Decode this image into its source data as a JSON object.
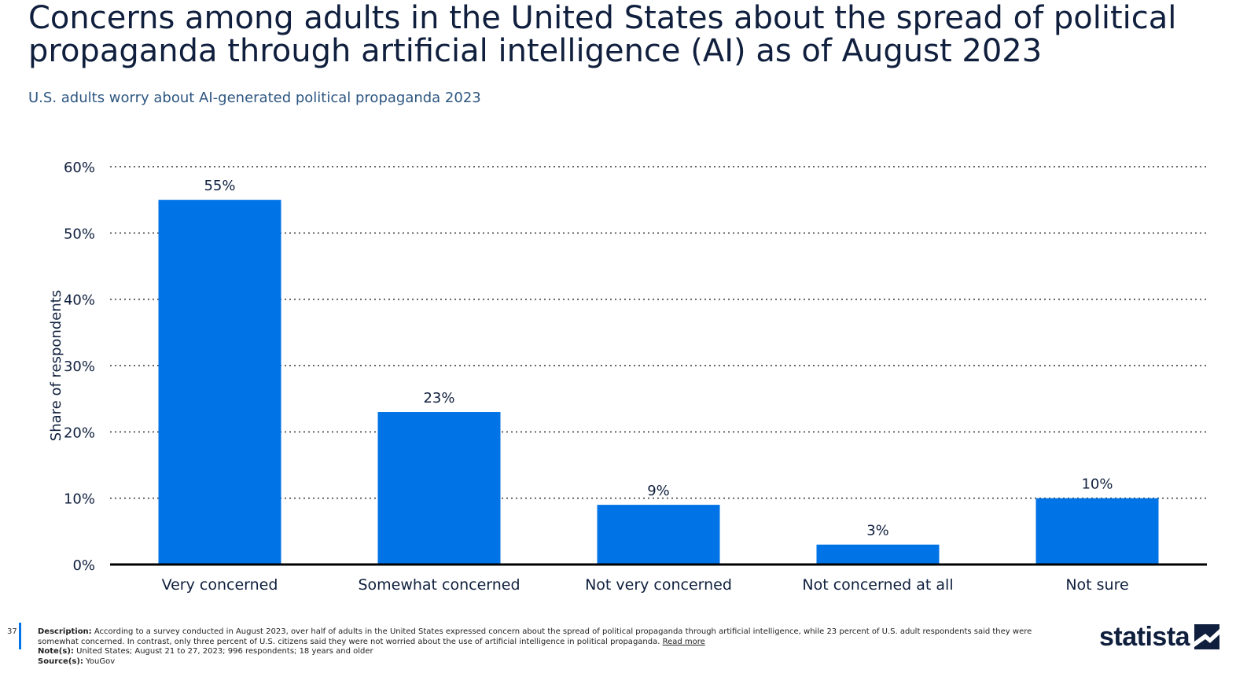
{
  "header": {
    "title": "Concerns among adults in the United States about the spread of political propaganda through artificial intelligence (AI) as of August 2023",
    "subtitle": "U.S. adults worry about AI-generated political propaganda 2023"
  },
  "chart_data": {
    "type": "bar",
    "categories": [
      "Very concerned",
      "Somewhat concerned",
      "Not very concerned",
      "Not concerned at all",
      "Not sure"
    ],
    "values": [
      55,
      23,
      9,
      3,
      10
    ],
    "value_labels": [
      "55%",
      "23%",
      "9%",
      "3%",
      "10%"
    ],
    "ylabel": "Share of respondents",
    "ylim": [
      0,
      60
    ],
    "yticks": [
      0,
      10,
      20,
      30,
      40,
      50,
      60
    ],
    "ytick_labels": [
      "0%",
      "10%",
      "20%",
      "30%",
      "40%",
      "50%",
      "60%"
    ],
    "grid": true,
    "bar_color": "#0073e6"
  },
  "footer": {
    "page_number": "37",
    "description_label": "Description:",
    "description": "According to a survey conducted in August 2023, over half of adults in the United States expressed concern about the spread of political propaganda through artificial intelligence, while 23 percent of U.S. adult respondents said they were somewhat concerned. In contrast, only three percent of U.S. citizens said they were not worried about the use of artificial intelligence in political propaganda.",
    "read_more": "Read more",
    "notes_label": "Note(s):",
    "notes": "United States; August 21 to 27, 2023; 996 respondents; 18 years and older",
    "source_label": "Source(s):",
    "source": "YouGov",
    "logo_text": "statista"
  },
  "colors": {
    "accent": "#0073e6",
    "title": "#0f1f3d",
    "subtitle": "#2d5680"
  }
}
